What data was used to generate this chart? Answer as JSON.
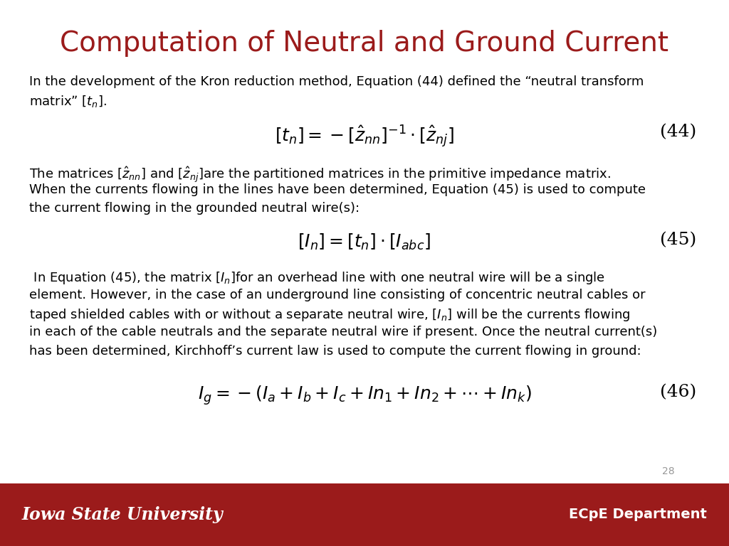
{
  "title": "Computation of Neutral and Ground Current",
  "title_color": "#9B1B1B",
  "title_fontsize": 28,
  "background_color": "#FFFFFF",
  "footer_color": "#9B1B1B",
  "footer_left": "Iowa State University",
  "footer_right": "ECpE Department",
  "footer_text_color": "#FFFFFF",
  "page_number": "28",
  "line1_p1": "In the development of the Kron reduction method, Equation (44) defined the “neutral transform",
  "line2_p1": "matrix” [$t_n$].",
  "eq44": "$[t_n] = -[\\hat{z}_{nn}]^{-1} \\cdot [\\hat{z}_{nj}]$",
  "eq44_num": "(44)",
  "para2_l1": "The matrices $[\\hat{z}_{nn}]$ and $[\\hat{z}_{nj}]$are the partitioned matrices in the primitive impedance matrix.",
  "para2_l2": "When the currents flowing in the lines have been determined, Equation (45) is used to compute",
  "para2_l3": "the current flowing in the grounded neutral wire(s):",
  "eq45": "$[I_n] = [t_n] \\cdot [I_{abc}]$",
  "eq45_num": "(45)",
  "para3_l1": " In Equation (45), the matrix $[I_n]$for an overhead line with one neutral wire will be a single",
  "para3_l2": "element. However, in the case of an underground line consisting of concentric neutral cables or",
  "para3_l3": "taped shielded cables with or without a separate neutral wire, $[I_n]$ will be the currents flowing",
  "para3_l4": "in each of the cable neutrals and the separate neutral wire if present. Once the neutral current(s)",
  "para3_l5": "has been determined, Kirchhoff’s current law is used to compute the current flowing in ground:",
  "eq46": "$I_g = -(I_a + I_b + I_c + In_1 + In_2 + \\cdots + In_k)$",
  "eq46_num": "(46)",
  "text_fontsize": 13.0,
  "eq_fontsize": 18,
  "eq_num_fontsize": 18
}
